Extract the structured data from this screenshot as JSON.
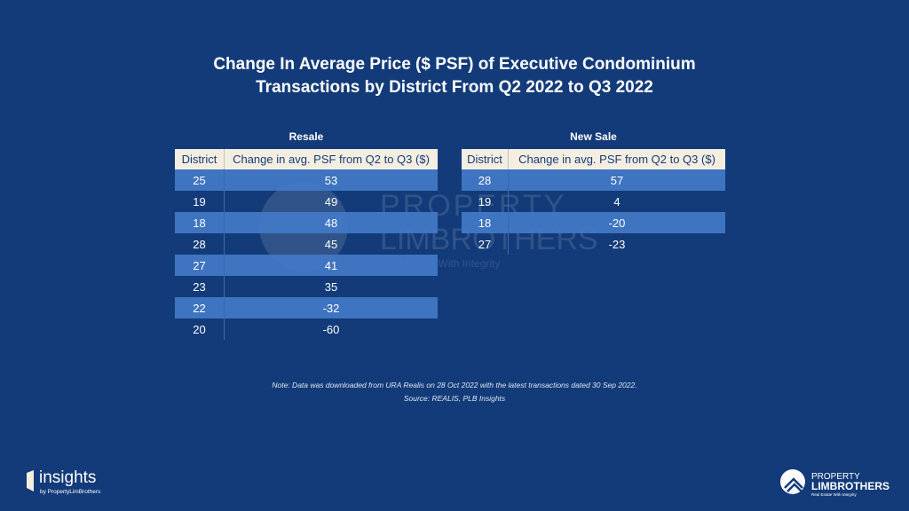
{
  "title_line1": "Change In Average Price ($ PSF) of Executive Condominium",
  "title_line2": "Transactions by District From Q2 2022 to Q3 2022",
  "chart_data": [
    {
      "type": "table",
      "title": "Resale",
      "columns": [
        "District",
        "Change in avg. PSF from Q2 to Q3 ($)"
      ],
      "rows": [
        [
          "25",
          "53"
        ],
        [
          "19",
          "49"
        ],
        [
          "18",
          "48"
        ],
        [
          "28",
          "45"
        ],
        [
          "27",
          "41"
        ],
        [
          "23",
          "35"
        ],
        [
          "22",
          "-32"
        ],
        [
          "20",
          "-60"
        ]
      ]
    },
    {
      "type": "table",
      "title": "New Sale",
      "columns": [
        "District",
        "Change in avg. PSF from Q2 to Q3 ($)"
      ],
      "rows": [
        [
          "28",
          "57"
        ],
        [
          "19",
          "4"
        ],
        [
          "18",
          "-20"
        ],
        [
          "27",
          "-23"
        ]
      ]
    }
  ],
  "note": "Note: Data was downloaded from URA Realis on 28 Oct 2022 with the latest transactions dated 30 Sep 2022.",
  "source": "Source: REALIS, PLB Insights",
  "watermark": {
    "line1": "PROPERTY",
    "line2": "LIMBROTHERS",
    "tagline": "Real Estate With Integrity"
  },
  "logo_left": {
    "name": "insights",
    "by": "by PropertyLimBrothers"
  },
  "logo_right": {
    "line1": "PROPERTY",
    "line2": "LIMBROTHERS",
    "tagline": "Real Estate With Integrity"
  },
  "colors": {
    "background": "#133b79",
    "header": "#f4eee0",
    "row_highlight": "#4279c7"
  }
}
